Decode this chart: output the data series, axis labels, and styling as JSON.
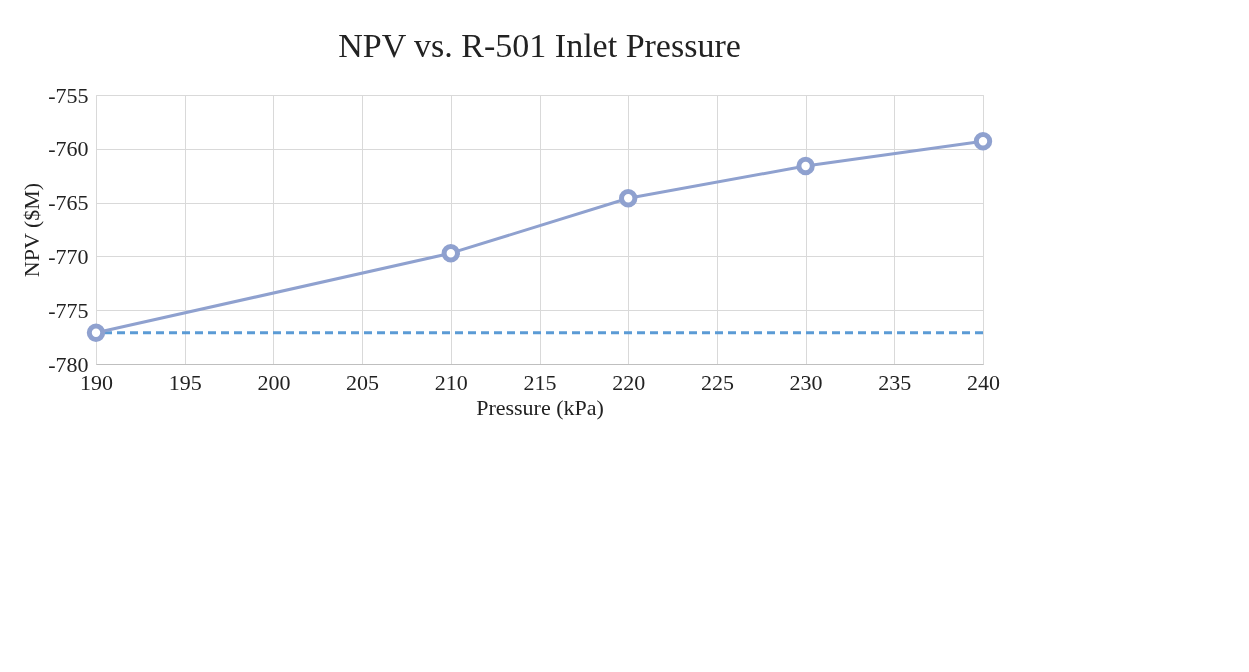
{
  "chart_data": {
    "type": "line",
    "title": "NPV vs. R-501 Inlet Pressure",
    "xlabel": "Pressure (kPa)",
    "ylabel": "NPV ($M)",
    "x": [
      190,
      210,
      220,
      230,
      240
    ],
    "series": [
      {
        "color": "#8fa1cf",
        "values": [
          -777.1,
          -769.7,
          -764.6,
          -761.6,
          -759.3
        ]
      }
    ],
    "xlim": [
      190,
      240
    ],
    "xticks": [
      190,
      195,
      200,
      205,
      210,
      215,
      220,
      225,
      230,
      235,
      240
    ],
    "ylim": [
      -780,
      -755
    ],
    "yticks": [
      -780,
      -775,
      -770,
      -765,
      -760,
      -755
    ],
    "grid": true,
    "marker": "circle",
    "line_style": "solid",
    "ref_lines": [
      {
        "axis": "y",
        "value": -777.1,
        "color": "#5b9bd5",
        "line_style": "dashed"
      }
    ]
  }
}
